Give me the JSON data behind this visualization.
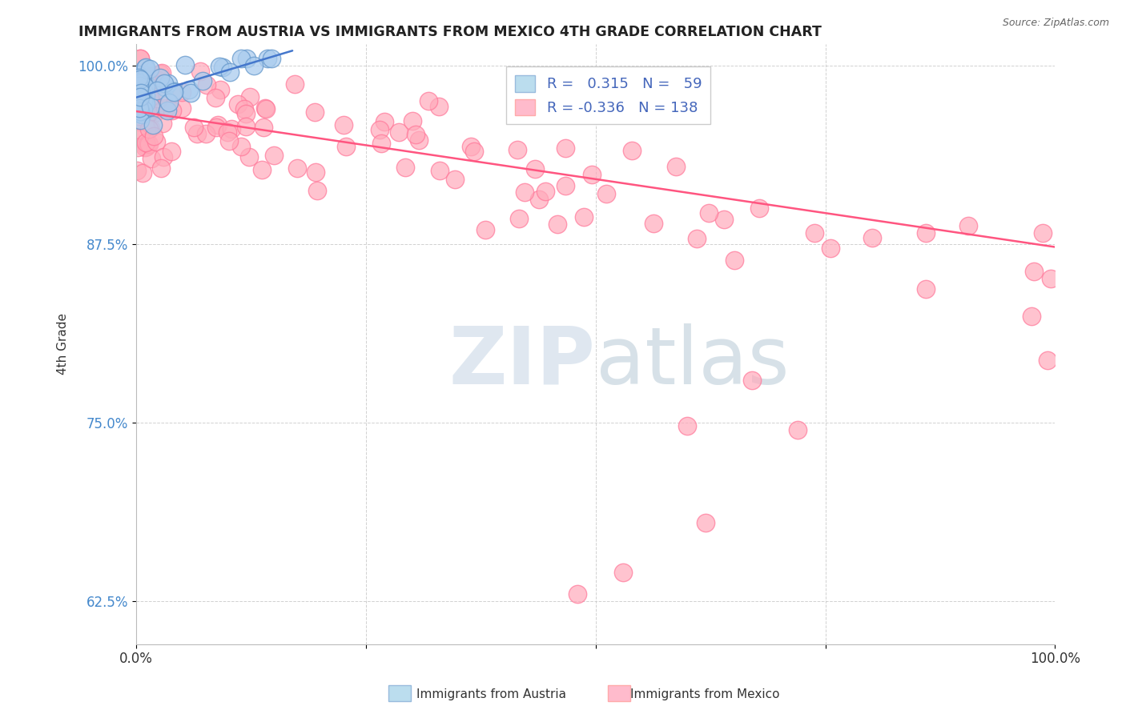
{
  "title": "IMMIGRANTS FROM AUSTRIA VS IMMIGRANTS FROM MEXICO 4TH GRADE CORRELATION CHART",
  "source": "Source: ZipAtlas.com",
  "ylabel": "4th Grade",
  "xlim": [
    0.0,
    1.0
  ],
  "ylim": [
    0.595,
    1.015
  ],
  "yticks": [
    0.625,
    0.75,
    0.875,
    1.0
  ],
  "ytick_labels": [
    "62.5%",
    "75.0%",
    "87.5%",
    "100.0%"
  ],
  "austria_R": 0.315,
  "austria_N": 59,
  "mexico_R": -0.336,
  "mexico_N": 138,
  "austria_scatter_color_face": "#AACCEE",
  "austria_scatter_color_edge": "#6699CC",
  "mexico_scatter_color_face": "#FFAABB",
  "mexico_scatter_color_edge": "#FF7799",
  "austria_line_color": "#4477CC",
  "mexico_line_color": "#FF5580",
  "legend_face_austria": "#BBDDEE",
  "legend_face_mexico": "#FFBBCC",
  "watermark_zip_color": "#C8D8E8",
  "watermark_atlas_color": "#AABBCC",
  "ytick_color": "#4488CC",
  "seed": 123
}
